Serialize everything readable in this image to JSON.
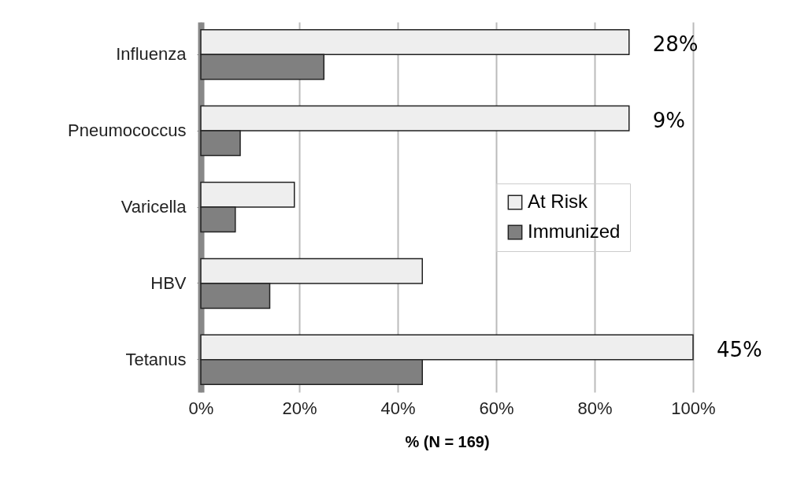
{
  "chart_data": {
    "type": "bar",
    "orientation": "horizontal",
    "xlabel": "% (N = 169)",
    "categories": [
      "Influenza",
      "Pneumococcus",
      "Varicella",
      "HBV",
      "Tetanus"
    ],
    "series": [
      {
        "name": "At Risk",
        "color": "#eeeeee",
        "values": [
          87,
          87,
          19,
          45,
          100
        ]
      },
      {
        "name": "Immunized",
        "color": "#808080",
        "values": [
          25,
          8,
          7,
          14,
          45
        ]
      }
    ],
    "xlim": [
      0,
      100
    ],
    "xticks": [
      {
        "value": 0,
        "label": "0%"
      },
      {
        "value": 20,
        "label": "20%"
      },
      {
        "value": 40,
        "label": "40%"
      },
      {
        "value": 60,
        "label": "60%"
      },
      {
        "value": 80,
        "label": "80%"
      },
      {
        "value": 100,
        "label": "100%"
      }
    ],
    "annotations": [
      "28%",
      "9%",
      "45%"
    ],
    "grid": "x",
    "legend": "right"
  }
}
